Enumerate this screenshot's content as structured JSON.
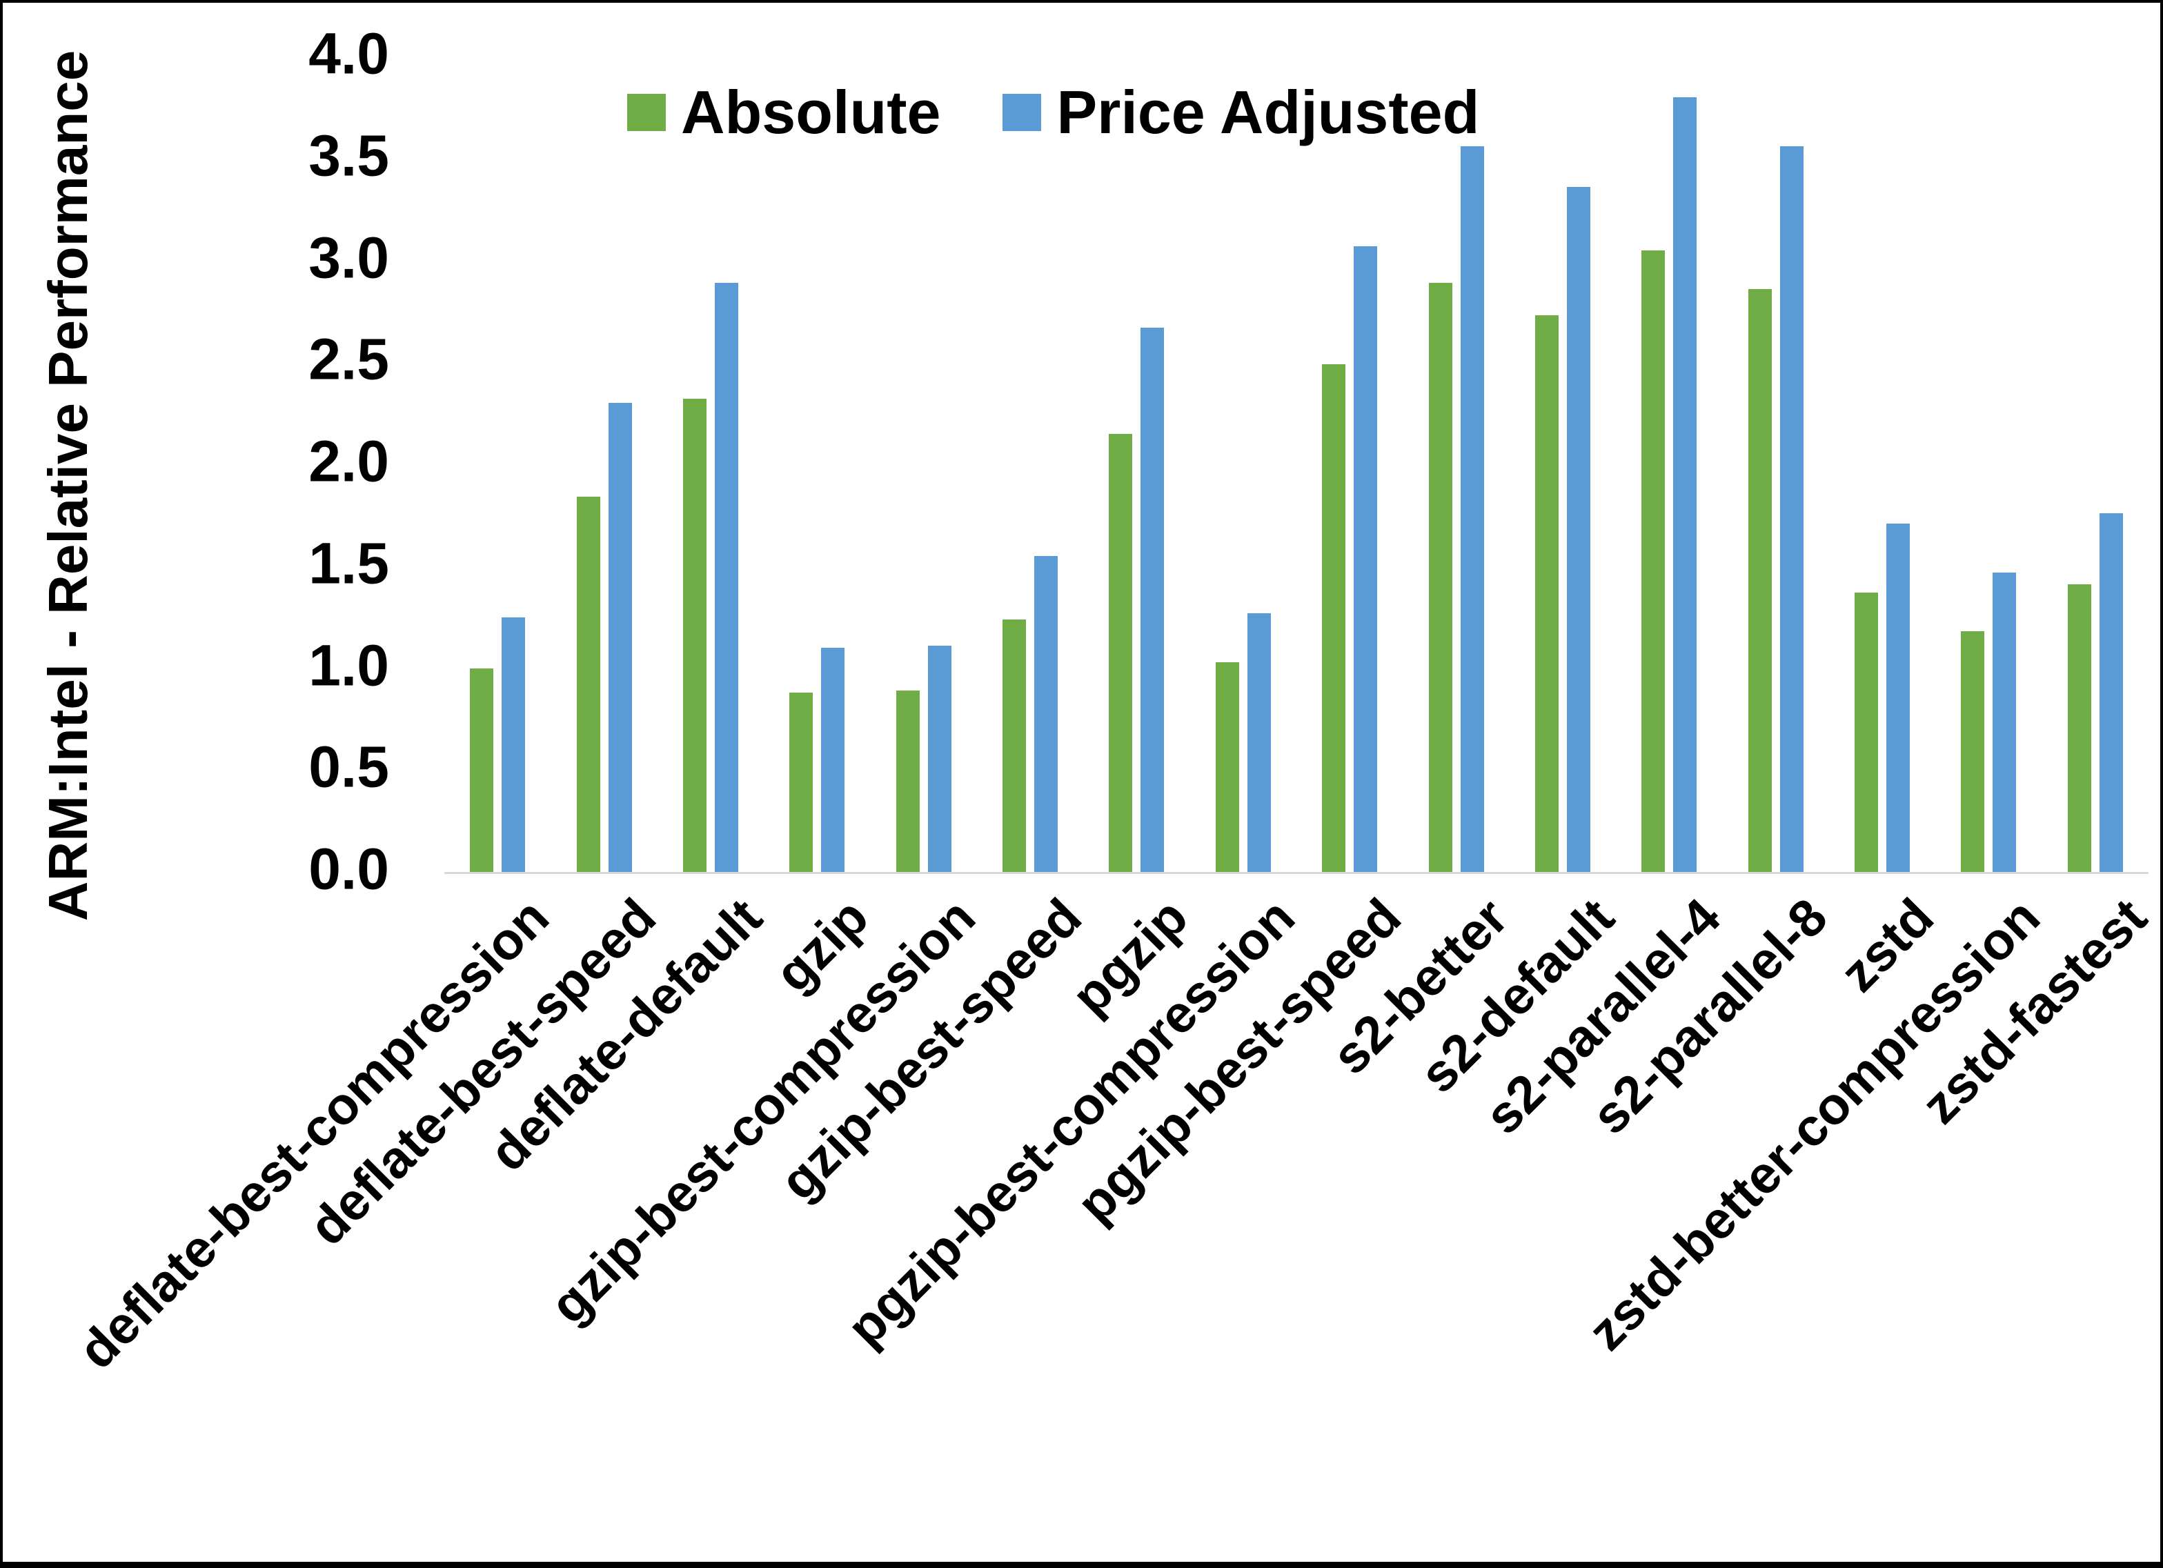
{
  "y_axis_title": "ARM:Intel - Relative Performance",
  "legend": {
    "absolute_label": "Absolute",
    "price_adjusted_label": "Price Adjusted"
  },
  "colors": {
    "absolute": "#70AD47",
    "price_adjusted": "#5B9BD5",
    "axis_line": "#D9D9D9",
    "text": "#000000",
    "frame": "#000000",
    "background": "#FFFFFF"
  },
  "chart_data": {
    "type": "bar",
    "title": "",
    "xlabel": "",
    "ylabel": "ARM:Intel - Relative Performance",
    "ylim": [
      0.0,
      4.0
    ],
    "ytick_step": 0.5,
    "grid": false,
    "legend_position": "top-center",
    "categories": [
      "deflate-best-compression",
      "deflate-best-speed",
      "deflate-default",
      "gzip",
      "gzip-best-compression",
      "gzip-best-speed",
      "pgzip",
      "pgzip-best-compression",
      "pgzip-best-speed",
      "s2-better",
      "s2-default",
      "s2-parallel-4",
      "s2-parallel-8",
      "zstd",
      "zstd-better-compression",
      "zstd-fastest"
    ],
    "series": [
      {
        "name": "Absolute",
        "values": [
          1.0,
          1.84,
          2.32,
          0.88,
          0.89,
          1.24,
          2.15,
          1.03,
          2.49,
          2.89,
          2.73,
          3.05,
          2.86,
          1.37,
          1.18,
          1.41
        ]
      },
      {
        "name": "Price Adjusted",
        "values": [
          1.25,
          2.3,
          2.89,
          1.1,
          1.11,
          1.55,
          2.67,
          1.27,
          3.07,
          3.56,
          3.36,
          3.8,
          3.56,
          1.71,
          1.47,
          1.76
        ]
      }
    ]
  }
}
